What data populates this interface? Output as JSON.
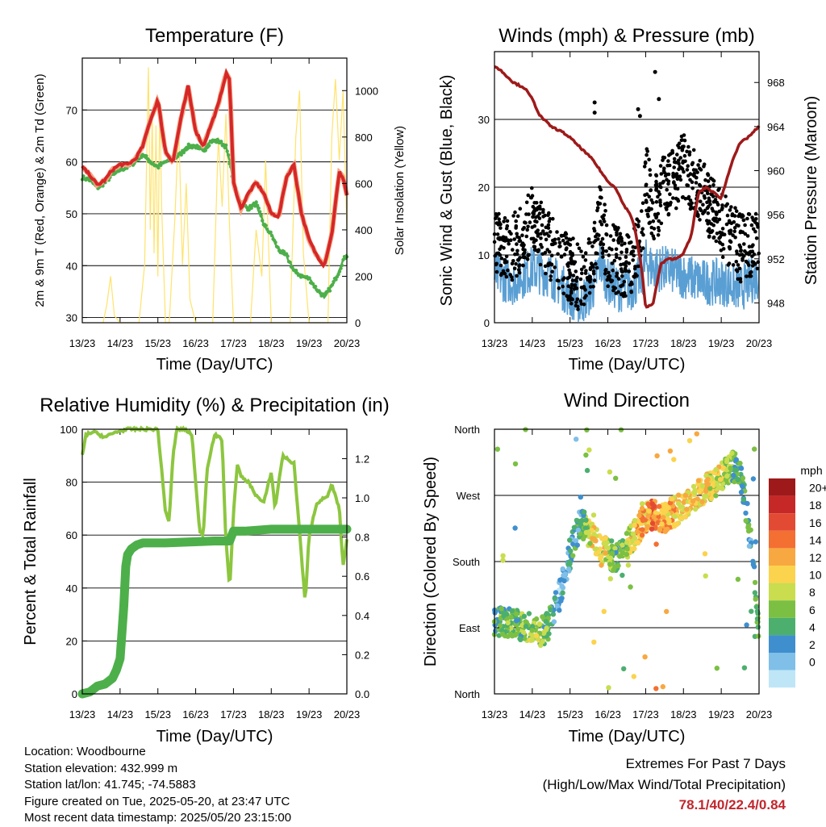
{
  "colors": {
    "temp_red": "#d62728",
    "temp_orange": "#f4a582",
    "dewpoint_green": "#4daf4a",
    "solar_yellow": "#ffe36b",
    "wind_blue": "#5a9fd4",
    "gust_black": "#000000",
    "pressure_maroon": "#9e1a1a",
    "rh_lightgreen": "#8cc63f",
    "precip_green": "#4daf4a",
    "extremes_red": "#c1272d"
  },
  "info": {
    "location": "Location: Woodbourne",
    "elevation": "Station elevation: 432.999 m",
    "latlon": "Station lat/lon: 41.745; -74.5883",
    "created": "Figure created on Tue, 2025-05-20, at 23:47 UTC",
    "timestamp": "Most recent data timestamp: 2025/05/20 23:15:00"
  },
  "extremes": {
    "title": "Extremes For Past 7 Days",
    "subtitle": "(High/Low/Max Wind/Total Precipitation)",
    "values": "78.1/40/22.4/0.84"
  },
  "chart_data": [
    {
      "id": "temperature",
      "type": "line",
      "title": "Temperature (F)",
      "xlabel": "Time (Day/UTC)",
      "ylabel": "2m & 9m T (Red, Orange) & 2m Td (Green)",
      "ylabel_right": "Solar Insolation (Yellow)",
      "x_ticks": [
        "13/23",
        "14/23",
        "15/23",
        "16/23",
        "17/23",
        "18/23",
        "19/23",
        "20/23"
      ],
      "xlim": [
        0,
        7
      ],
      "ylim": [
        29,
        80
      ],
      "y_ticks": [
        30,
        40,
        50,
        60,
        70
      ],
      "ylim_right": [
        0,
        1140
      ],
      "y_ticks_right": [
        0,
        200,
        400,
        600,
        800,
        1000
      ],
      "grid": "horizontal",
      "series": [
        {
          "key": "temp",
          "x": [
            0,
            0.2,
            0.4,
            0.6,
            0.8,
            1.0,
            1.2,
            1.4,
            1.6,
            1.8,
            2.0,
            2.2,
            2.4,
            2.6,
            2.8,
            3.0,
            3.2,
            3.4,
            3.6,
            3.8,
            3.9,
            4.0,
            4.2,
            4.4,
            4.6,
            4.8,
            5.0,
            5.2,
            5.4,
            5.6,
            5.8,
            6.0,
            6.2,
            6.4,
            6.6,
            6.8,
            6.9,
            7.0
          ],
          "values": [
            59,
            57.5,
            55.5,
            56.5,
            58.5,
            59.5,
            59.5,
            60.5,
            63,
            68,
            72,
            62,
            60,
            68,
            74.5,
            66,
            63,
            67,
            71,
            77,
            76,
            56,
            51,
            54,
            56,
            54,
            50,
            49.5,
            57,
            59.5,
            50,
            45,
            42,
            40,
            46,
            58,
            57,
            53.5
          ]
        },
        {
          "key": "dewpoint",
          "x": [
            0,
            0.2,
            0.4,
            0.6,
            0.8,
            1.0,
            1.2,
            1.4,
            1.6,
            1.8,
            2.0,
            2.2,
            2.4,
            2.6,
            2.8,
            3.0,
            3.2,
            3.4,
            3.6,
            3.8,
            3.9,
            4.0,
            4.2,
            4.4,
            4.6,
            4.8,
            5.0,
            5.2,
            5.4,
            5.6,
            5.8,
            6.0,
            6.2,
            6.4,
            6.6,
            6.8,
            6.9,
            7.0
          ],
          "values": [
            57,
            56.5,
            55,
            56,
            57.5,
            58.5,
            59,
            60,
            61.5,
            60,
            59,
            60,
            60.5,
            61.5,
            63,
            63,
            62,
            64,
            64,
            63,
            60,
            56,
            52,
            51,
            52,
            48,
            46,
            43,
            42,
            39,
            38,
            37.5,
            35.5,
            34,
            36,
            39,
            41,
            42
          ]
        },
        {
          "key": "solar",
          "x": [
            0.55,
            0.65,
            0.75,
            0.85,
            1.0,
            1.5,
            1.65,
            1.75,
            1.8,
            1.85,
            1.9,
            1.95,
            2.0,
            2.05,
            2.1,
            2.2,
            2.3,
            2.45,
            2.55,
            2.65,
            2.75,
            2.85,
            3.0,
            3.45,
            3.6,
            3.7,
            3.8,
            3.9,
            4.0,
            4.45,
            4.6,
            4.75,
            4.85,
            5.0,
            5.5,
            5.65,
            5.75,
            5.85,
            6.0,
            6.5,
            6.6,
            6.7,
            6.8,
            6.9,
            7.0
          ],
          "values": [
            0,
            80,
            200,
            30,
            0,
            0,
            250,
            1100,
            400,
            900,
            300,
            850,
            200,
            950,
            500,
            0,
            0,
            450,
            850,
            250,
            600,
            100,
            0,
            0,
            800,
            500,
            900,
            400,
            0,
            0,
            400,
            200,
            700,
            0,
            0,
            800,
            1000,
            300,
            0,
            0,
            800,
            1050,
            700,
            1000,
            400
          ]
        }
      ]
    },
    {
      "id": "winds",
      "type": "scatter",
      "title": "Winds (mph) & Pressure (mb)",
      "xlabel": "Time (Day/UTC)",
      "ylabel": "Sonic Wind & Gust (Blue, Black)",
      "ylabel_right": "Station Pressure (Maroon)",
      "x_ticks": [
        "13/23",
        "14/23",
        "15/23",
        "16/23",
        "17/23",
        "18/23",
        "19/23",
        "20/23"
      ],
      "xlim": [
        0,
        7
      ],
      "ylim": [
        0,
        40
      ],
      "y_ticks": [
        0,
        10,
        20,
        30
      ],
      "ylim_right": [
        946.2,
        970.8
      ],
      "y_ticks_right": [
        948,
        952,
        956,
        960,
        964,
        968
      ],
      "grid": "horizontal",
      "series": [
        {
          "key": "wind",
          "x": [
            0,
            0.5,
            1.0,
            1.5,
            2.0,
            2.3,
            2.6,
            2.8,
            3.0,
            3.3,
            3.6,
            3.9,
            4.0,
            4.2,
            4.5,
            5.0,
            5.5,
            6.0,
            6.5,
            7.0
          ],
          "values": [
            7,
            6,
            8,
            7,
            4,
            3,
            5,
            9,
            6,
            5,
            5,
            7,
            9,
            8,
            8,
            7,
            6,
            6,
            5,
            7
          ]
        },
        {
          "key": "gust",
          "x": [
            0,
            0.5,
            1.0,
            1.5,
            2.0,
            2.3,
            2.6,
            2.8,
            3.0,
            3.3,
            3.6,
            3.9,
            4.0,
            4.2,
            4.5,
            5.0,
            5.5,
            6.0,
            6.5,
            7.0
          ],
          "values": [
            12,
            11,
            15,
            11,
            8,
            6,
            9,
            16,
            10,
            9,
            8,
            13,
            22,
            16,
            20,
            23,
            19,
            15,
            11,
            12
          ]
        },
        {
          "key": "gust_outliers",
          "x": [
            2.65,
            2.65,
            3.8,
            3.85,
            4.25,
            4.35
          ],
          "values": [
            32.5,
            31,
            31.5,
            30.5,
            37,
            33
          ]
        },
        {
          "key": "pressure",
          "x": [
            0,
            0.2,
            0.5,
            0.8,
            1.0,
            1.2,
            1.5,
            1.8,
            2.0,
            2.3,
            2.6,
            2.8,
            3.0,
            3.2,
            3.4,
            3.6,
            3.7,
            3.8,
            3.9,
            4.0,
            4.2,
            4.4,
            4.6,
            4.8,
            5.0,
            5.2,
            5.4,
            5.6,
            5.8,
            6.0,
            6.3,
            6.5,
            6.7,
            7.0
          ],
          "values": [
            969.5,
            969,
            968,
            967.5,
            966.5,
            965,
            964,
            963.5,
            963,
            962,
            961,
            960,
            959,
            958.5,
            957,
            956,
            955,
            953,
            951,
            947.5,
            948,
            951.5,
            952,
            952,
            952.5,
            954,
            958,
            958.5,
            958,
            957.5,
            961,
            962.5,
            963,
            964
          ]
        }
      ]
    },
    {
      "id": "humidity",
      "type": "line",
      "title": "Relative Humidity (%) & Precipitation (in)",
      "xlabel": "Time (Day/UTC)",
      "ylabel": "Percent & Total Rainfall",
      "x_ticks": [
        "13/23",
        "14/23",
        "15/23",
        "16/23",
        "17/23",
        "18/23",
        "19/23",
        "20/23"
      ],
      "xlim": [
        0,
        7
      ],
      "ylim": [
        0,
        100
      ],
      "y_ticks": [
        0,
        20,
        40,
        60,
        80,
        100
      ],
      "ylim_right": [
        0,
        1.35
      ],
      "y_ticks_right": [
        "0.0",
        "0.2",
        "0.4",
        "0.6",
        "0.8",
        "1.0",
        "1.2"
      ],
      "grid": "horizontal",
      "series": [
        {
          "key": "rh",
          "x": [
            0,
            0.1,
            0.3,
            0.6,
            0.9,
            1.2,
            1.5,
            1.8,
            2.0,
            2.2,
            2.3,
            2.4,
            2.5,
            2.7,
            2.9,
            3.0,
            3.1,
            3.2,
            3.3,
            3.5,
            3.7,
            3.8,
            3.9,
            4.0,
            4.1,
            4.2,
            4.4,
            4.6,
            4.8,
            5.0,
            5.1,
            5.3,
            5.6,
            5.7,
            5.9,
            6.0,
            6.2,
            6.5,
            6.6,
            6.8,
            6.9,
            7.0
          ],
          "values": [
            90,
            98,
            99,
            97,
            99,
            100,
            100,
            100,
            100,
            69,
            65,
            90,
            100,
            100,
            98,
            80,
            62,
            60,
            85,
            98,
            96,
            58,
            40,
            68,
            87,
            82,
            80,
            75,
            72,
            84,
            70,
            90,
            87,
            70,
            34,
            60,
            72,
            75,
            79,
            70,
            48,
            58
          ]
        },
        {
          "key": "precip",
          "x": [
            0,
            0.2,
            0.4,
            0.6,
            0.8,
            0.9,
            1.0,
            1.1,
            1.15,
            1.2,
            1.3,
            1.45,
            1.6,
            1.8,
            2.2,
            3.5,
            3.9,
            4.0,
            4.3,
            5.0,
            6.0,
            7.0
          ],
          "values": [
            0.0,
            0.01,
            0.04,
            0.05,
            0.08,
            0.12,
            0.18,
            0.45,
            0.65,
            0.71,
            0.74,
            0.76,
            0.77,
            0.77,
            0.77,
            0.78,
            0.78,
            0.83,
            0.83,
            0.84,
            0.84,
            0.84
          ]
        }
      ]
    },
    {
      "id": "direction",
      "type": "scatter",
      "title": "Wind Direction",
      "xlabel": "Time (Day/UTC)",
      "ylabel": "Direction (Colored By Speed)",
      "x_ticks": [
        "13/23",
        "14/23",
        "15/23",
        "16/23",
        "17/23",
        "18/23",
        "19/23",
        "20/23"
      ],
      "xlim": [
        0,
        7
      ],
      "ylim": [
        0,
        360
      ],
      "y_ticks": [
        "North",
        "East",
        "South",
        "West",
        "North"
      ],
      "grid": "horizontal",
      "legend": {
        "title": "mph",
        "labels": [
          "20+",
          "18",
          "16",
          "14",
          "12",
          "10",
          "8",
          "6",
          "4",
          "2",
          "0"
        ],
        "colors": [
          "#9e1a1a",
          "#c62828",
          "#e34a33",
          "#f36f32",
          "#f8a840",
          "#fbd34d",
          "#c9dd4e",
          "#7bc043",
          "#4caf6e",
          "#3f8fcf",
          "#7fbfe8",
          "#bfe6f7"
        ],
        "placement": "right"
      },
      "series": [
        {
          "key": "dir_trend",
          "x": [
            0,
            0.5,
            1.0,
            1.3,
            1.5,
            1.7,
            2.0,
            2.3,
            2.6,
            2.9,
            3.2,
            3.5,
            3.8,
            4.0,
            4.2,
            4.5,
            5.0,
            5.5,
            6.0,
            6.3,
            6.5,
            6.8,
            7.0
          ],
          "values": [
            100,
            95,
            88,
            85,
            100,
            130,
            190,
            240,
            210,
            195,
            185,
            200,
            225,
            240,
            245,
            240,
            255,
            275,
            295,
            310,
            300,
            210,
            80
          ]
        },
        {
          "key": "dir_speed",
          "x": [
            0,
            0.5,
            1.0,
            1.3,
            1.5,
            1.7,
            2.0,
            2.3,
            2.6,
            2.9,
            3.2,
            3.5,
            3.8,
            4.0,
            4.2,
            4.5,
            5.0,
            5.5,
            6.0,
            6.3,
            6.5,
            6.8,
            7.0
          ],
          "values": [
            6,
            7,
            9,
            8,
            5,
            3,
            4,
            5,
            12,
            11,
            6,
            9,
            14,
            13,
            16,
            14,
            12,
            12,
            10,
            7,
            6,
            5,
            9
          ]
        }
      ]
    }
  ]
}
